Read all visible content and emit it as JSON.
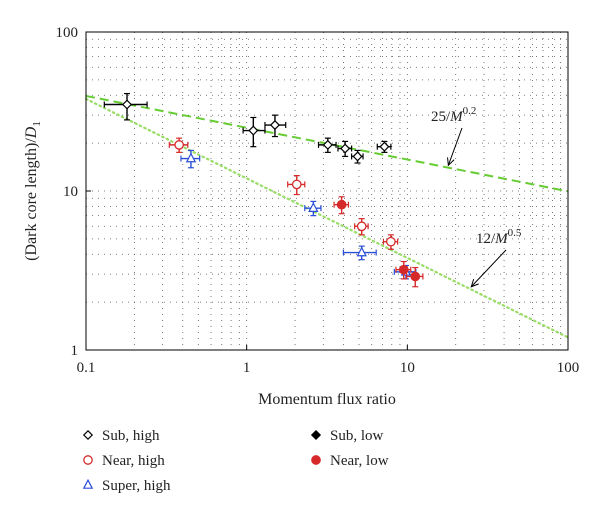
{
  "chart_data": {
    "type": "scatter",
    "xlabel": "Momentum flux ratio",
    "ylabel": {
      "main": "(Dark core length)/",
      "var": "D",
      "sub": "1"
    },
    "xscale": "log",
    "yscale": "log",
    "xlim": [
      0.1,
      100
    ],
    "ylim": [
      1,
      100
    ],
    "x_ticks": [
      {
        "value": 0.1,
        "label": "0.1"
      },
      {
        "value": 1,
        "label": "1"
      },
      {
        "value": 10,
        "label": "10"
      },
      {
        "value": 100,
        "label": "100"
      }
    ],
    "y_ticks": [
      {
        "value": 1,
        "label": "1"
      },
      {
        "value": 10,
        "label": "10"
      },
      {
        "value": 100,
        "label": "100"
      }
    ],
    "grid": "dotted minor",
    "legend_position": "bottom",
    "series": [
      {
        "name": "Sub, high",
        "marker": "diamond-open",
        "color": "#000000",
        "points": [
          {
            "x": 0.18,
            "y": 35,
            "xerr": [
              0.05,
              0.06
            ],
            "yerr": [
              7,
              6
            ]
          },
          {
            "x": 1.1,
            "y": 24,
            "xerr": [
              0.15,
              0.2
            ],
            "yerr": [
              5,
              5
            ]
          },
          {
            "x": 1.5,
            "y": 26,
            "xerr": [
              0.2,
              0.25
            ],
            "yerr": [
              4,
              4
            ]
          },
          {
            "x": 3.2,
            "y": 19.5,
            "xerr": [
              0.4,
              0.4
            ],
            "yerr": [
              2,
              2
            ]
          },
          {
            "x": 4.1,
            "y": 18.5,
            "xerr": [
              0.4,
              0.4
            ],
            "yerr": [
              2,
              2
            ]
          },
          {
            "x": 4.9,
            "y": 16.5,
            "xerr": [
              0.4,
              0.4
            ],
            "yerr": [
              1.5,
              1.5
            ]
          },
          {
            "x": 7.2,
            "y": 19,
            "xerr": [
              0.7,
              0.7
            ],
            "yerr": [
              1.5,
              1.5
            ]
          }
        ]
      },
      {
        "name": "Near, high",
        "marker": "circle-open",
        "color": "#d62a2a",
        "points": [
          {
            "x": 0.38,
            "y": 19.5,
            "xerr": [
              0.05,
              0.05
            ],
            "yerr": [
              2,
              2
            ]
          },
          {
            "x": 2.05,
            "y": 11,
            "xerr": [
              0.25,
              0.25
            ],
            "yerr": [
              1.5,
              1.5
            ]
          },
          {
            "x": 5.2,
            "y": 6,
            "xerr": [
              0.5,
              0.5
            ],
            "yerr": [
              0.7,
              0.7
            ]
          },
          {
            "x": 7.9,
            "y": 4.8,
            "xerr": [
              0.8,
              0.8
            ],
            "yerr": [
              0.5,
              0.5
            ]
          }
        ]
      },
      {
        "name": "Super, high",
        "marker": "triangle-open",
        "color": "#2a4fd6",
        "points": [
          {
            "x": 0.45,
            "y": 16,
            "xerr": [
              0.06,
              0.06
            ],
            "yerr": [
              2,
              2
            ]
          },
          {
            "x": 2.6,
            "y": 7.8,
            "xerr": [
              0.3,
              0.3
            ],
            "yerr": [
              0.8,
              0.8
            ]
          },
          {
            "x": 5.2,
            "y": 4.1,
            "xerr": [
              1.2,
              1.2
            ],
            "yerr": [
              0.4,
              0.4
            ]
          },
          {
            "x": 9.8,
            "y": 3.1,
            "xerr": [
              1.5,
              1.5
            ],
            "yerr": [
              0.3,
              0.3
            ]
          }
        ]
      },
      {
        "name": "Sub, low",
        "marker": "diamond-filled",
        "color": "#000000",
        "points": []
      },
      {
        "name": "Near, low",
        "marker": "circle-filled",
        "color": "#d62a2a",
        "points": [
          {
            "x": 3.9,
            "y": 8.2,
            "xerr": [
              0.4,
              0.4
            ],
            "yerr": [
              1,
              1
            ]
          },
          {
            "x": 9.5,
            "y": 3.2,
            "xerr": [
              1,
              1
            ],
            "yerr": [
              0.4,
              0.4
            ]
          },
          {
            "x": 11.2,
            "y": 2.9,
            "xerr": [
              1.3,
              1.3
            ],
            "yerr": [
              0.4,
              0.4
            ]
          }
        ]
      }
    ],
    "fit_lines": [
      {
        "coef": 25,
        "exp": 0.2,
        "color": "#66cc33",
        "style": "dashed"
      },
      {
        "coef": 12,
        "exp": 0.5,
        "color": "#99dd66",
        "style": "dotted"
      }
    ],
    "annotations": [
      {
        "coef": "25/",
        "var": "M",
        "exp": "0.2",
        "arrow_to": {
          "x": 18,
          "y": 14.5
        }
      },
      {
        "coef": "12/",
        "var": "M",
        "exp": "0.5",
        "arrow_to": {
          "x": 25,
          "y": 2.5
        }
      }
    ]
  }
}
